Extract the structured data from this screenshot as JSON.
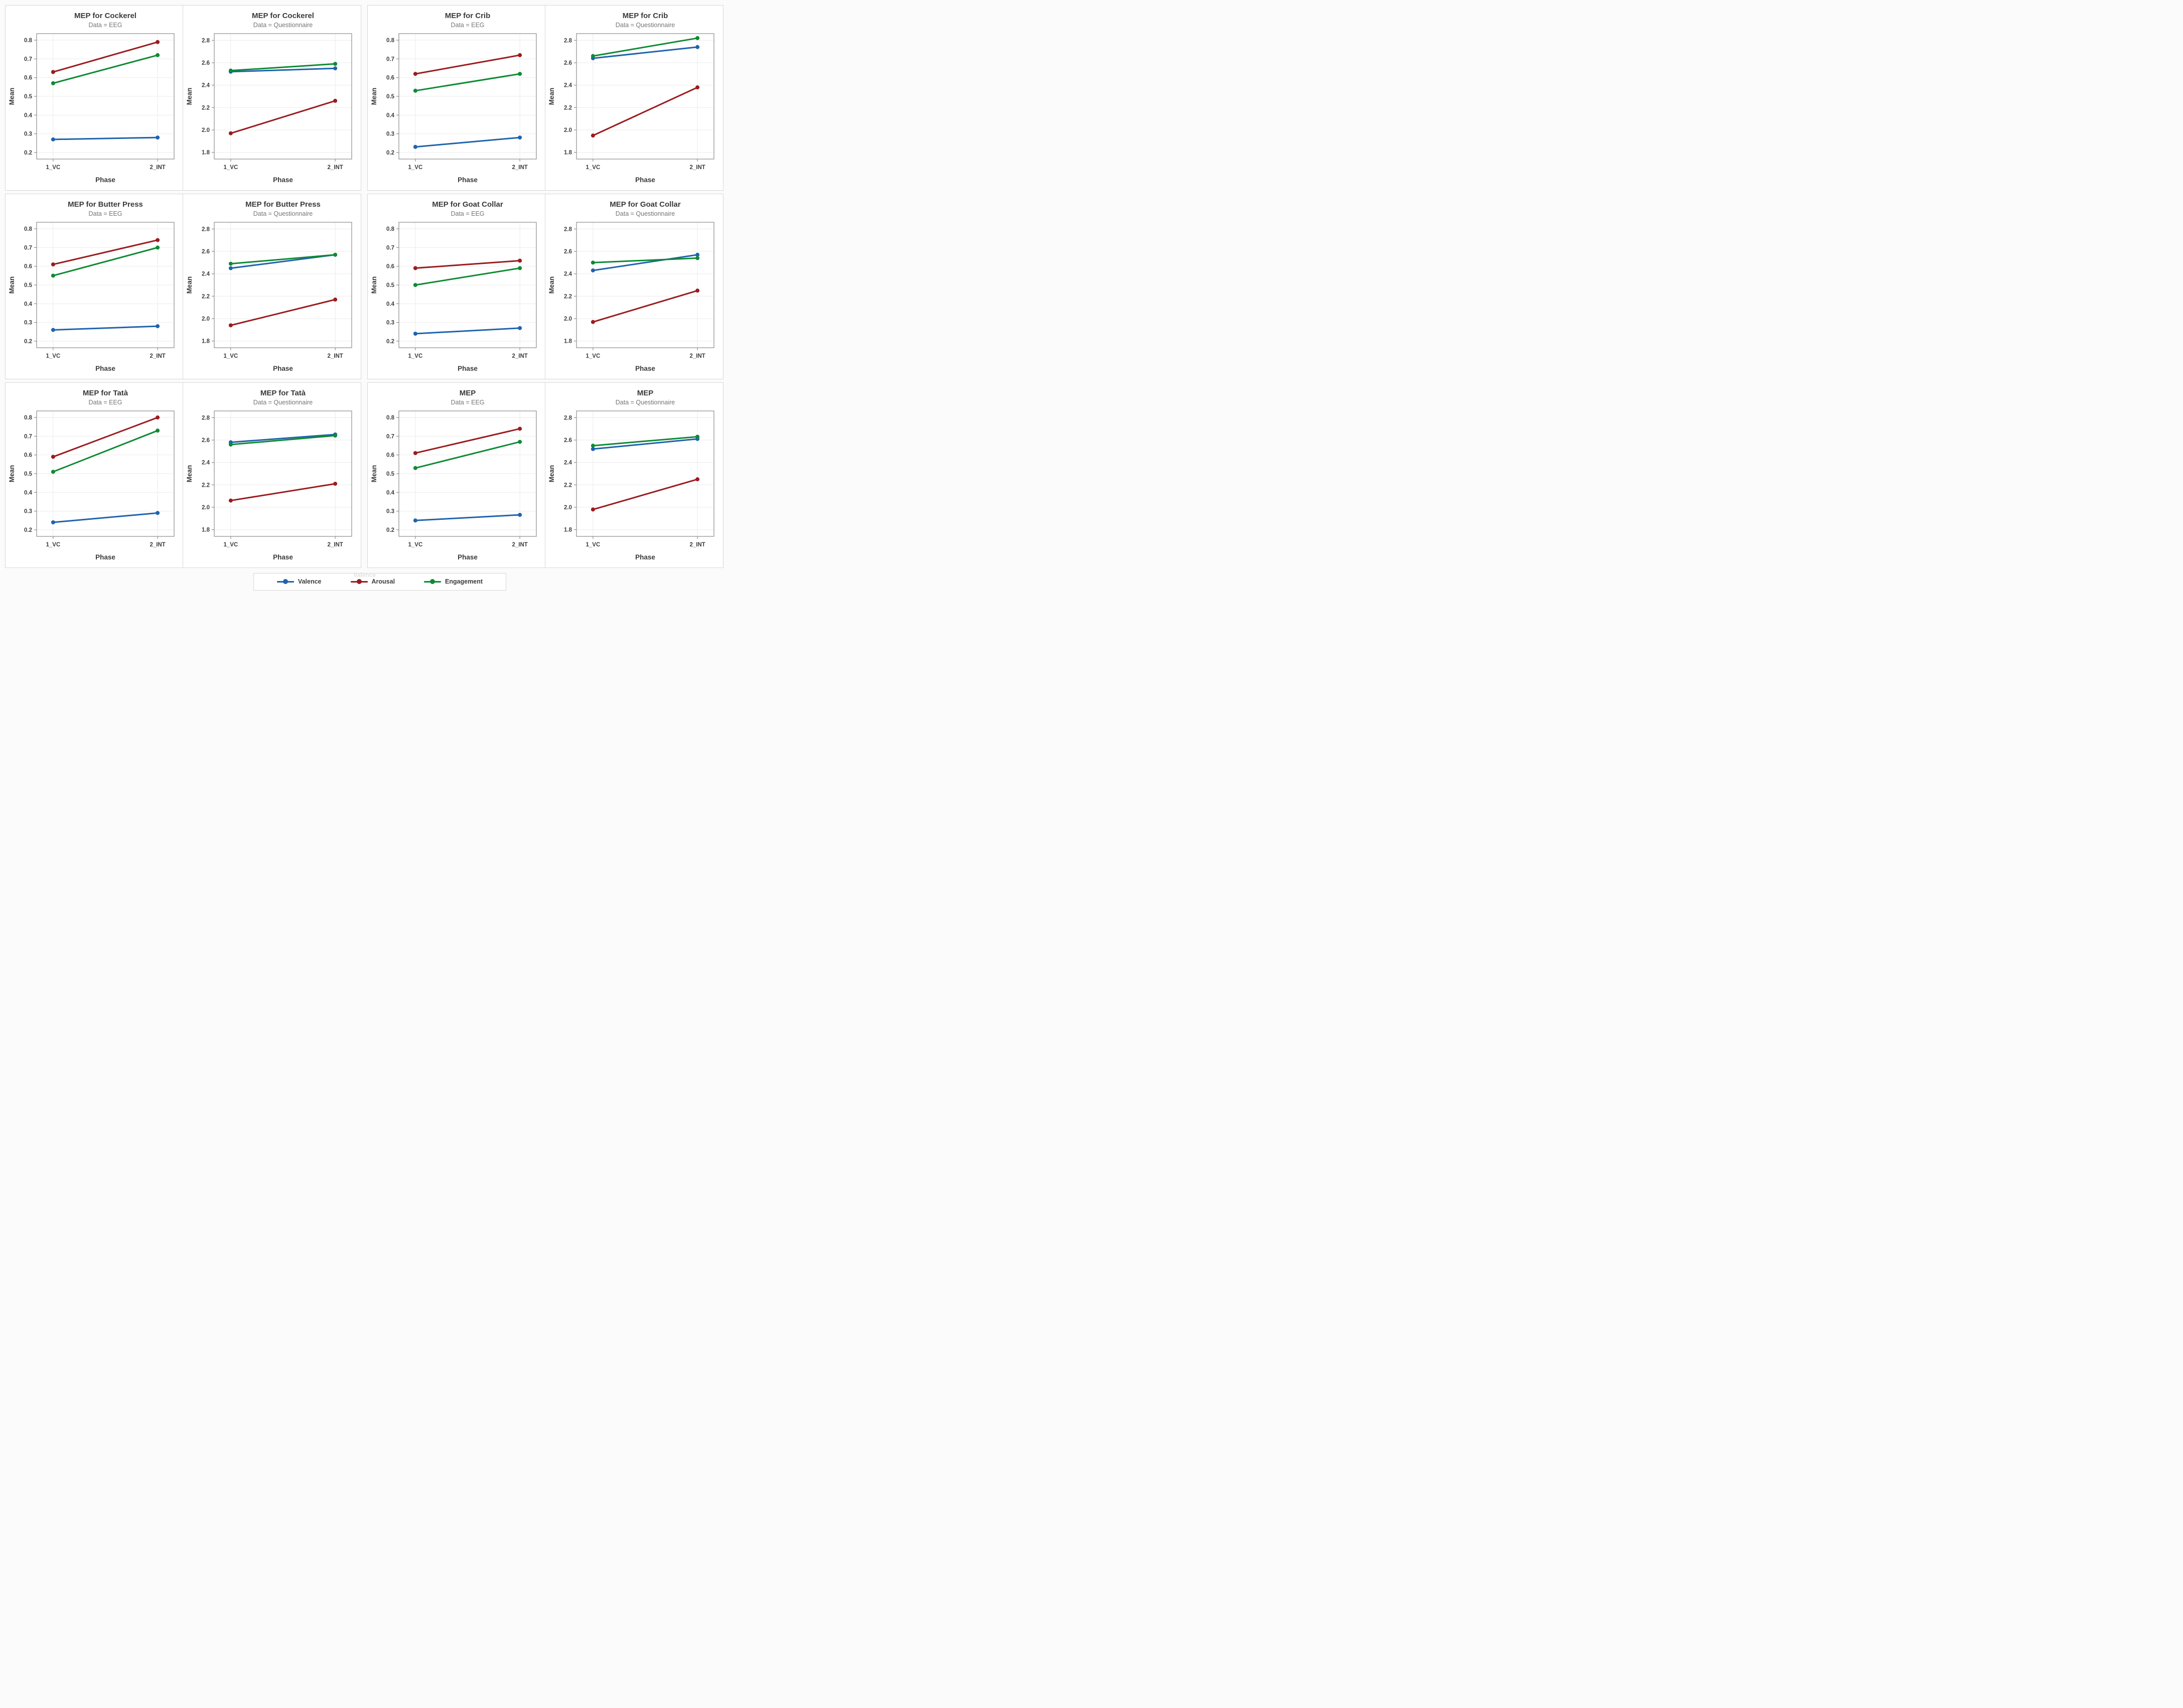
{
  "axes": {
    "x_label": "Phase",
    "y_label": "Mean",
    "categories": [
      "1_VC",
      "2_INT"
    ]
  },
  "legend": {
    "ghost_text": "Valence",
    "items": [
      {
        "label": "Valence",
        "color": "#1F63AD"
      },
      {
        "label": "Arousal",
        "color": "#9B1B1E"
      },
      {
        "label": "Engagement",
        "color": "#0E8A33"
      }
    ]
  },
  "colors": {
    "grid": "#ebebeb",
    "plot_border": "#8c8c8c",
    "tick": "#8c8c8c",
    "tick_label": "#3d3d3d",
    "title": "#3a3a3a",
    "subtitle": "#757575"
  },
  "chart_data": [
    {
      "type": "line",
      "title": "MEP for Cockerel",
      "subtitle": "Data = EEG",
      "categories": [
        "1_VC",
        "2_INT"
      ],
      "xlabel": "Phase",
      "ylabel": "Mean",
      "ylim": [
        0.165,
        0.835
      ],
      "yticks": [
        "0.2",
        "0.3",
        "0.4",
        "0.5",
        "0.6",
        "0.7",
        "0.8"
      ],
      "series": [
        {
          "name": "Valence",
          "values": [
            0.27,
            0.28
          ]
        },
        {
          "name": "Arousal",
          "values": [
            0.63,
            0.79
          ]
        },
        {
          "name": "Engagement",
          "values": [
            0.57,
            0.72
          ]
        }
      ]
    },
    {
      "type": "line",
      "title": "MEP for Cockerel",
      "subtitle": "Data = Questionnaire",
      "categories": [
        "1_VC",
        "2_INT"
      ],
      "xlabel": "Phase",
      "ylabel": "Mean",
      "ylim": [
        1.74,
        2.86
      ],
      "yticks": [
        "1.8",
        "2.0",
        "2.2",
        "2.4",
        "2.6",
        "2.8"
      ],
      "series": [
        {
          "name": "Valence",
          "values": [
            2.52,
            2.55
          ]
        },
        {
          "name": "Arousal",
          "values": [
            1.97,
            2.26
          ]
        },
        {
          "name": "Engagement",
          "values": [
            2.53,
            2.59
          ]
        }
      ]
    },
    {
      "type": "line",
      "title": "MEP for Crib",
      "subtitle": "Data = EEG",
      "categories": [
        "1_VC",
        "2_INT"
      ],
      "xlabel": "Phase",
      "ylabel": "Mean",
      "ylim": [
        0.165,
        0.835
      ],
      "yticks": [
        "0.2",
        "0.3",
        "0.4",
        "0.5",
        "0.6",
        "0.7",
        "0.8"
      ],
      "series": [
        {
          "name": "Valence",
          "values": [
            0.23,
            0.28
          ]
        },
        {
          "name": "Arousal",
          "values": [
            0.62,
            0.72
          ]
        },
        {
          "name": "Engagement",
          "values": [
            0.53,
            0.62
          ]
        }
      ]
    },
    {
      "type": "line",
      "title": "MEP for Crib",
      "subtitle": "Data = Questionnaire",
      "categories": [
        "1_VC",
        "2_INT"
      ],
      "xlabel": "Phase",
      "ylabel": "Mean",
      "ylim": [
        1.74,
        2.86
      ],
      "yticks": [
        "1.8",
        "2.0",
        "2.2",
        "2.4",
        "2.6",
        "2.8"
      ],
      "series": [
        {
          "name": "Valence",
          "values": [
            2.64,
            2.74
          ]
        },
        {
          "name": "Arousal",
          "values": [
            1.95,
            2.38
          ]
        },
        {
          "name": "Engagement",
          "values": [
            2.66,
            2.82
          ]
        }
      ]
    },
    {
      "type": "line",
      "title": "MEP for Butter Press",
      "subtitle": "Data = EEG",
      "categories": [
        "1_VC",
        "2_INT"
      ],
      "xlabel": "Phase",
      "ylabel": "Mean",
      "ylim": [
        0.165,
        0.835
      ],
      "yticks": [
        "0.2",
        "0.3",
        "0.4",
        "0.5",
        "0.6",
        "0.7",
        "0.8"
      ],
      "series": [
        {
          "name": "Valence",
          "values": [
            0.26,
            0.28
          ]
        },
        {
          "name": "Arousal",
          "values": [
            0.61,
            0.74
          ]
        },
        {
          "name": "Engagement",
          "values": [
            0.55,
            0.7
          ]
        }
      ]
    },
    {
      "type": "line",
      "title": "MEP for Butter Press",
      "subtitle": "Data = Questionnaire",
      "categories": [
        "1_VC",
        "2_INT"
      ],
      "xlabel": "Phase",
      "ylabel": "Mean",
      "ylim": [
        1.74,
        2.86
      ],
      "yticks": [
        "1.8",
        "2.0",
        "2.2",
        "2.4",
        "2.6",
        "2.8"
      ],
      "series": [
        {
          "name": "Valence",
          "values": [
            2.45,
            2.57
          ]
        },
        {
          "name": "Arousal",
          "values": [
            1.94,
            2.17
          ]
        },
        {
          "name": "Engagement",
          "values": [
            2.49,
            2.57
          ]
        }
      ]
    },
    {
      "type": "line",
      "title": "MEP for Goat Collar",
      "subtitle": "Data = EEG",
      "categories": [
        "1_VC",
        "2_INT"
      ],
      "xlabel": "Phase",
      "ylabel": "Mean",
      "ylim": [
        0.165,
        0.835
      ],
      "yticks": [
        "0.2",
        "0.3",
        "0.4",
        "0.5",
        "0.6",
        "0.7",
        "0.8"
      ],
      "series": [
        {
          "name": "Valence",
          "values": [
            0.24,
            0.27
          ]
        },
        {
          "name": "Arousal",
          "values": [
            0.59,
            0.63
          ]
        },
        {
          "name": "Engagement",
          "values": [
            0.5,
            0.59
          ]
        }
      ]
    },
    {
      "type": "line",
      "title": "MEP for Goat Collar",
      "subtitle": "Data = Questionnaire",
      "categories": [
        "1_VC",
        "2_INT"
      ],
      "xlabel": "Phase",
      "ylabel": "Mean",
      "ylim": [
        1.74,
        2.86
      ],
      "yticks": [
        "1.8",
        "2.0",
        "2.2",
        "2.4",
        "2.6",
        "2.8"
      ],
      "series": [
        {
          "name": "Valence",
          "values": [
            2.43,
            2.57
          ]
        },
        {
          "name": "Arousal",
          "values": [
            1.97,
            2.25
          ]
        },
        {
          "name": "Engagement",
          "values": [
            2.5,
            2.54
          ]
        }
      ]
    },
    {
      "type": "line",
      "title": "MEP for Tatà",
      "subtitle": "Data = EEG",
      "categories": [
        "1_VC",
        "2_INT"
      ],
      "xlabel": "Phase",
      "ylabel": "Mean",
      "ylim": [
        0.165,
        0.835
      ],
      "yticks": [
        "0.2",
        "0.3",
        "0.4",
        "0.5",
        "0.6",
        "0.7",
        "0.8"
      ],
      "series": [
        {
          "name": "Valence",
          "values": [
            0.24,
            0.29
          ]
        },
        {
          "name": "Arousal",
          "values": [
            0.59,
            0.8
          ]
        },
        {
          "name": "Engagement",
          "values": [
            0.51,
            0.73
          ]
        }
      ]
    },
    {
      "type": "line",
      "title": "MEP for Tatà",
      "subtitle": "Data = Questionnaire",
      "categories": [
        "1_VC",
        "2_INT"
      ],
      "xlabel": "Phase",
      "ylabel": "Mean",
      "ylim": [
        1.74,
        2.86
      ],
      "yticks": [
        "1.8",
        "2.0",
        "2.2",
        "2.4",
        "2.6",
        "2.8"
      ],
      "series": [
        {
          "name": "Valence",
          "values": [
            2.58,
            2.65
          ]
        },
        {
          "name": "Arousal",
          "values": [
            2.06,
            2.21
          ]
        },
        {
          "name": "Engagement",
          "values": [
            2.56,
            2.64
          ]
        }
      ]
    },
    {
      "type": "line",
      "title": "MEP",
      "subtitle": "Data = EEG",
      "categories": [
        "1_VC",
        "2_INT"
      ],
      "xlabel": "Phase",
      "ylabel": "Mean",
      "ylim": [
        0.165,
        0.835
      ],
      "yticks": [
        "0.2",
        "0.3",
        "0.4",
        "0.5",
        "0.6",
        "0.7",
        "0.8"
      ],
      "series": [
        {
          "name": "Valence",
          "values": [
            0.25,
            0.28
          ]
        },
        {
          "name": "Arousal",
          "values": [
            0.61,
            0.74
          ]
        },
        {
          "name": "Engagement",
          "values": [
            0.53,
            0.67
          ]
        }
      ]
    },
    {
      "type": "line",
      "title": "MEP",
      "subtitle": "Data = Questionnaire",
      "categories": [
        "1_VC",
        "2_INT"
      ],
      "xlabel": "Phase",
      "ylabel": "Mean",
      "ylim": [
        1.74,
        2.86
      ],
      "yticks": [
        "1.8",
        "2.0",
        "2.2",
        "2.4",
        "2.6",
        "2.8"
      ],
      "series": [
        {
          "name": "Valence",
          "values": [
            2.52,
            2.61
          ]
        },
        {
          "name": "Arousal",
          "values": [
            1.98,
            2.25
          ]
        },
        {
          "name": "Engagement",
          "values": [
            2.55,
            2.63
          ]
        }
      ]
    }
  ]
}
